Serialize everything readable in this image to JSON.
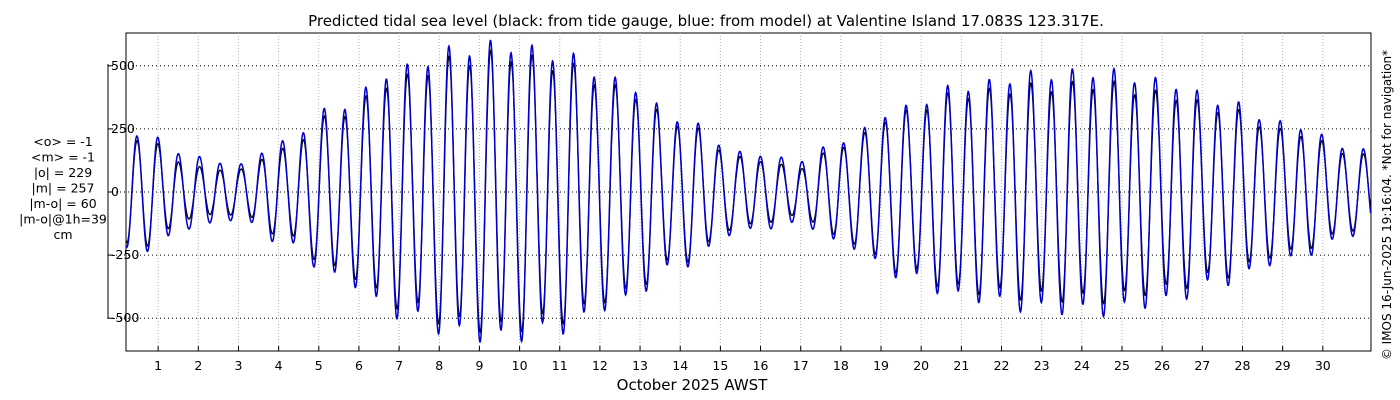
{
  "chart_data": {
    "type": "line",
    "title": "Predicted tidal sea level (black: from tide gauge, blue: from model) at Valentine Island 17.083S 123.317E.",
    "xlabel": "October 2025 AWST",
    "ylabel": "",
    "x_ticks": [
      "1",
      "2",
      "3",
      "4",
      "5",
      "6",
      "7",
      "8",
      "9",
      "10",
      "11",
      "12",
      "13",
      "14",
      "15",
      "16",
      "17",
      "18",
      "19",
      "20",
      "21",
      "22",
      "23",
      "24",
      "25",
      "26",
      "27",
      "28",
      "29",
      "30"
    ],
    "y_ticks": [
      500,
      250,
      0,
      -250,
      -500
    ],
    "ylim": [
      -630,
      630
    ],
    "xlim_days": [
      0.2,
      31.2
    ],
    "grid": true,
    "stats_lines": [
      "<o> = -1",
      "<m> = -1",
      "|o| = 229",
      "|m| = 257",
      "|m-o| = 60",
      "|m-o|@1h=39",
      "cm"
    ],
    "credit": "© IMOS 16-Jun-2025 19:16:04.  *Not for navigation*",
    "series": [
      {
        "name": "tide gauge",
        "color": "#000000",
        "envelope_peaks": [
          {
            "day": 0.5,
            "amp": 220
          },
          {
            "day": 2.0,
            "amp": 100
          },
          {
            "day": 3.0,
            "amp": 90
          },
          {
            "day": 4.0,
            "amp": 170
          },
          {
            "day": 5.5,
            "amp": 320
          },
          {
            "day": 7.0,
            "amp": 460
          },
          {
            "day": 8.5,
            "amp": 540
          },
          {
            "day": 9.5,
            "amp": 560
          },
          {
            "day": 11.0,
            "amp": 520
          },
          {
            "day": 12.5,
            "amp": 420
          },
          {
            "day": 14.0,
            "amp": 280
          },
          {
            "day": 15.5,
            "amp": 140
          },
          {
            "day": 17.0,
            "amp": 100
          },
          {
            "day": 18.0,
            "amp": 190
          },
          {
            "day": 19.5,
            "amp": 320
          },
          {
            "day": 21.0,
            "amp": 400
          },
          {
            "day": 23.0,
            "amp": 430
          },
          {
            "day": 24.5,
            "amp": 440
          },
          {
            "day": 26.0,
            "amp": 400
          },
          {
            "day": 27.5,
            "amp": 340
          },
          {
            "day": 29.0,
            "amp": 250
          },
          {
            "day": 31.0,
            "amp": 150
          }
        ]
      },
      {
        "name": "model",
        "color": "#0000cc",
        "envelope_peaks": [
          {
            "day": 0.5,
            "amp": 240
          },
          {
            "day": 2.0,
            "amp": 140
          },
          {
            "day": 3.0,
            "amp": 110
          },
          {
            "day": 4.0,
            "amp": 200
          },
          {
            "day": 5.5,
            "amp": 350
          },
          {
            "day": 7.0,
            "amp": 500
          },
          {
            "day": 8.5,
            "amp": 580
          },
          {
            "day": 9.5,
            "amp": 600
          },
          {
            "day": 11.0,
            "amp": 560
          },
          {
            "day": 12.5,
            "amp": 450
          },
          {
            "day": 14.0,
            "amp": 300
          },
          {
            "day": 15.5,
            "amp": 160
          },
          {
            "day": 17.0,
            "amp": 130
          },
          {
            "day": 18.0,
            "amp": 210
          },
          {
            "day": 19.5,
            "amp": 340
          },
          {
            "day": 21.0,
            "amp": 430
          },
          {
            "day": 23.0,
            "amp": 480
          },
          {
            "day": 24.5,
            "amp": 490
          },
          {
            "day": 26.0,
            "amp": 450
          },
          {
            "day": 27.5,
            "amp": 370
          },
          {
            "day": 29.0,
            "amp": 280
          },
          {
            "day": 31.0,
            "amp": 170
          }
        ]
      }
    ]
  }
}
